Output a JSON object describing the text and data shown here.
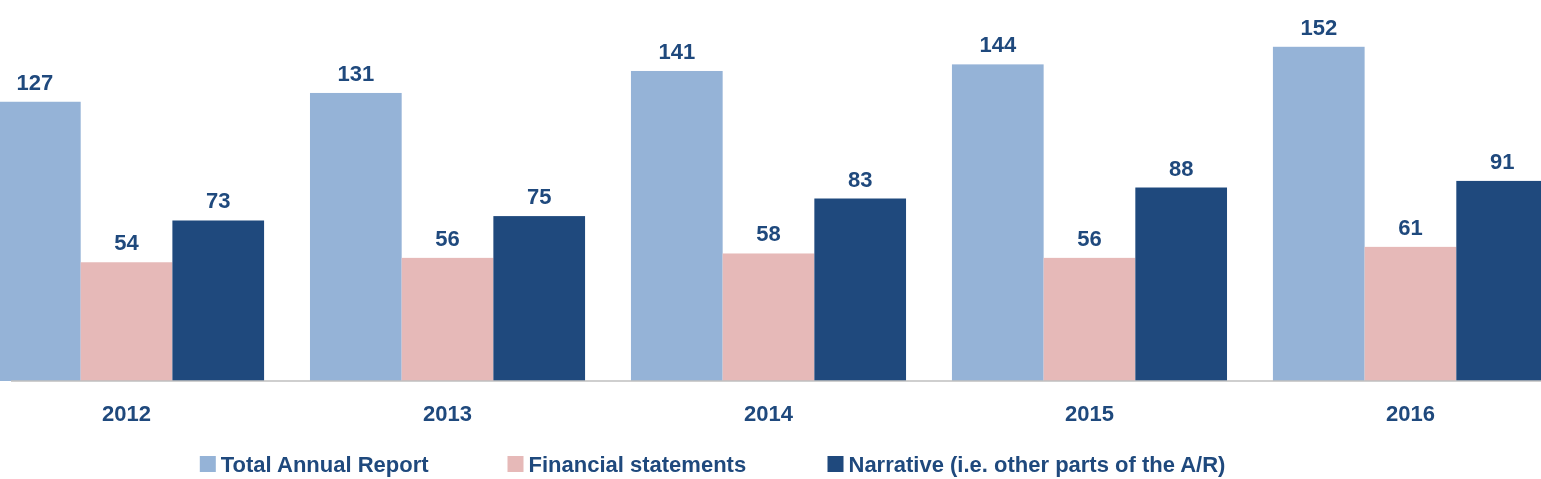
{
  "chart_data": {
    "type": "bar",
    "categories": [
      "2012",
      "2013",
      "2014",
      "2015",
      "2016"
    ],
    "series": [
      {
        "name": "Total Annual Report",
        "color": "#95b3d7",
        "values": [
          127,
          131,
          141,
          144,
          152
        ]
      },
      {
        "name": "Financial statements",
        "color": "#e6b9b8",
        "values": [
          54,
          56,
          58,
          56,
          61
        ]
      },
      {
        "name": "Narrative (i.e. other parts of the A/R)",
        "color": "#1f497d",
        "values": [
          73,
          75,
          83,
          88,
          91
        ]
      }
    ],
    "data_labels": true,
    "legend": "bottom"
  }
}
